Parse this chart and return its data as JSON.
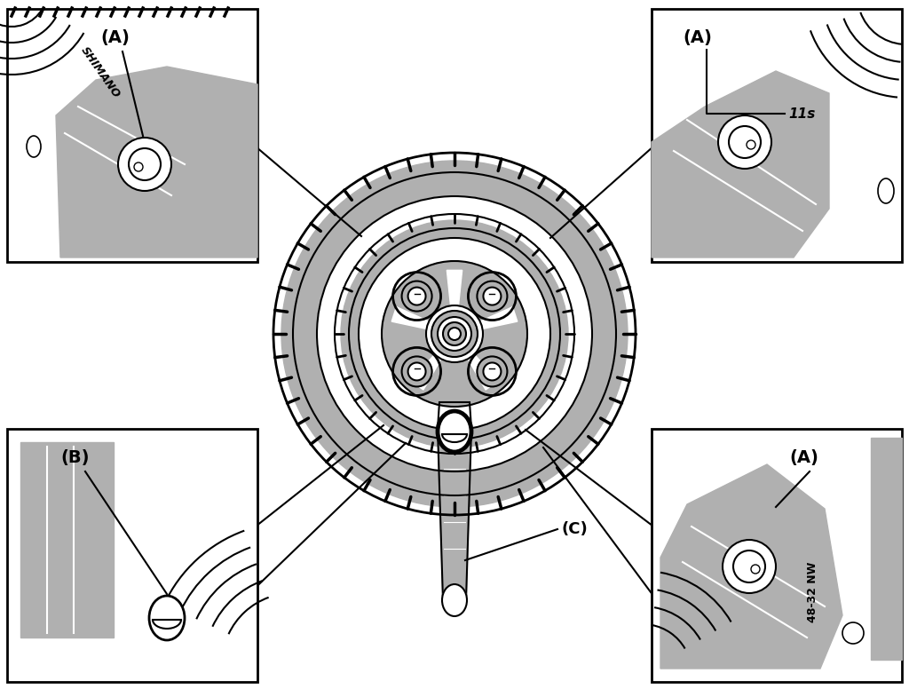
{
  "bg_color": "#ffffff",
  "line_color": "#000000",
  "gray_fill": "#b0b0b0",
  "light_gray": "#cccccc",
  "fig_width": 10.24,
  "fig_height": 7.76,
  "label_A": "(A)",
  "label_B": "(B)",
  "label_C": "(C)",
  "text_11s": "11s",
  "text_shimano": "SHIMANO",
  "text_4832": "48-32 NW"
}
